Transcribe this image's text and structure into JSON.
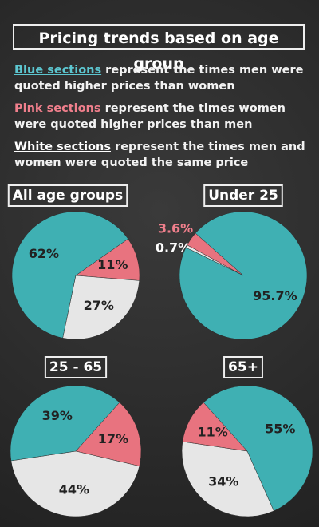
{
  "header": {
    "title": "Pricing trends based on age group",
    "legend": [
      {
        "label": "Blue sections",
        "text": "represent the times men were quoted higher prices than women",
        "color": "#5cc6d0"
      },
      {
        "label": "Pink sections",
        "text": "represent the times women were quoted higher prices than men",
        "color": "#f07f8c"
      },
      {
        "label": "White sections",
        "text": "represent the times men and women were quoted the same price",
        "color": "#ffffff"
      }
    ]
  },
  "chart_data": [
    {
      "type": "pie",
      "title": "All age groups",
      "values": [
        11,
        27,
        62
      ],
      "value_labels": [
        "11%",
        "27%",
        "62%"
      ],
      "colors": [
        "#e8737f",
        "#e6e6e6",
        "#3fb0b3"
      ]
    },
    {
      "type": "pie",
      "title": "Under 25",
      "values": [
        0.7,
        3.6,
        95.7
      ],
      "value_labels": [
        "0.7%",
        "3.6%",
        "95.7%"
      ],
      "colors": [
        "#e6e6e6",
        "#e8737f",
        "#3fb0b3"
      ]
    },
    {
      "type": "pie",
      "title": "25 - 65",
      "values": [
        17,
        44,
        39
      ],
      "value_labels": [
        "17%",
        "44%",
        "39%"
      ],
      "colors": [
        "#e8737f",
        "#e6e6e6",
        "#3fb0b3"
      ]
    },
    {
      "type": "pie",
      "title": "65+",
      "values": [
        55,
        34,
        11
      ],
      "value_labels": [
        "55%",
        "34%",
        "11%"
      ],
      "colors": [
        "#3fb0b3",
        "#e6e6e6",
        "#e8737f"
      ]
    }
  ]
}
